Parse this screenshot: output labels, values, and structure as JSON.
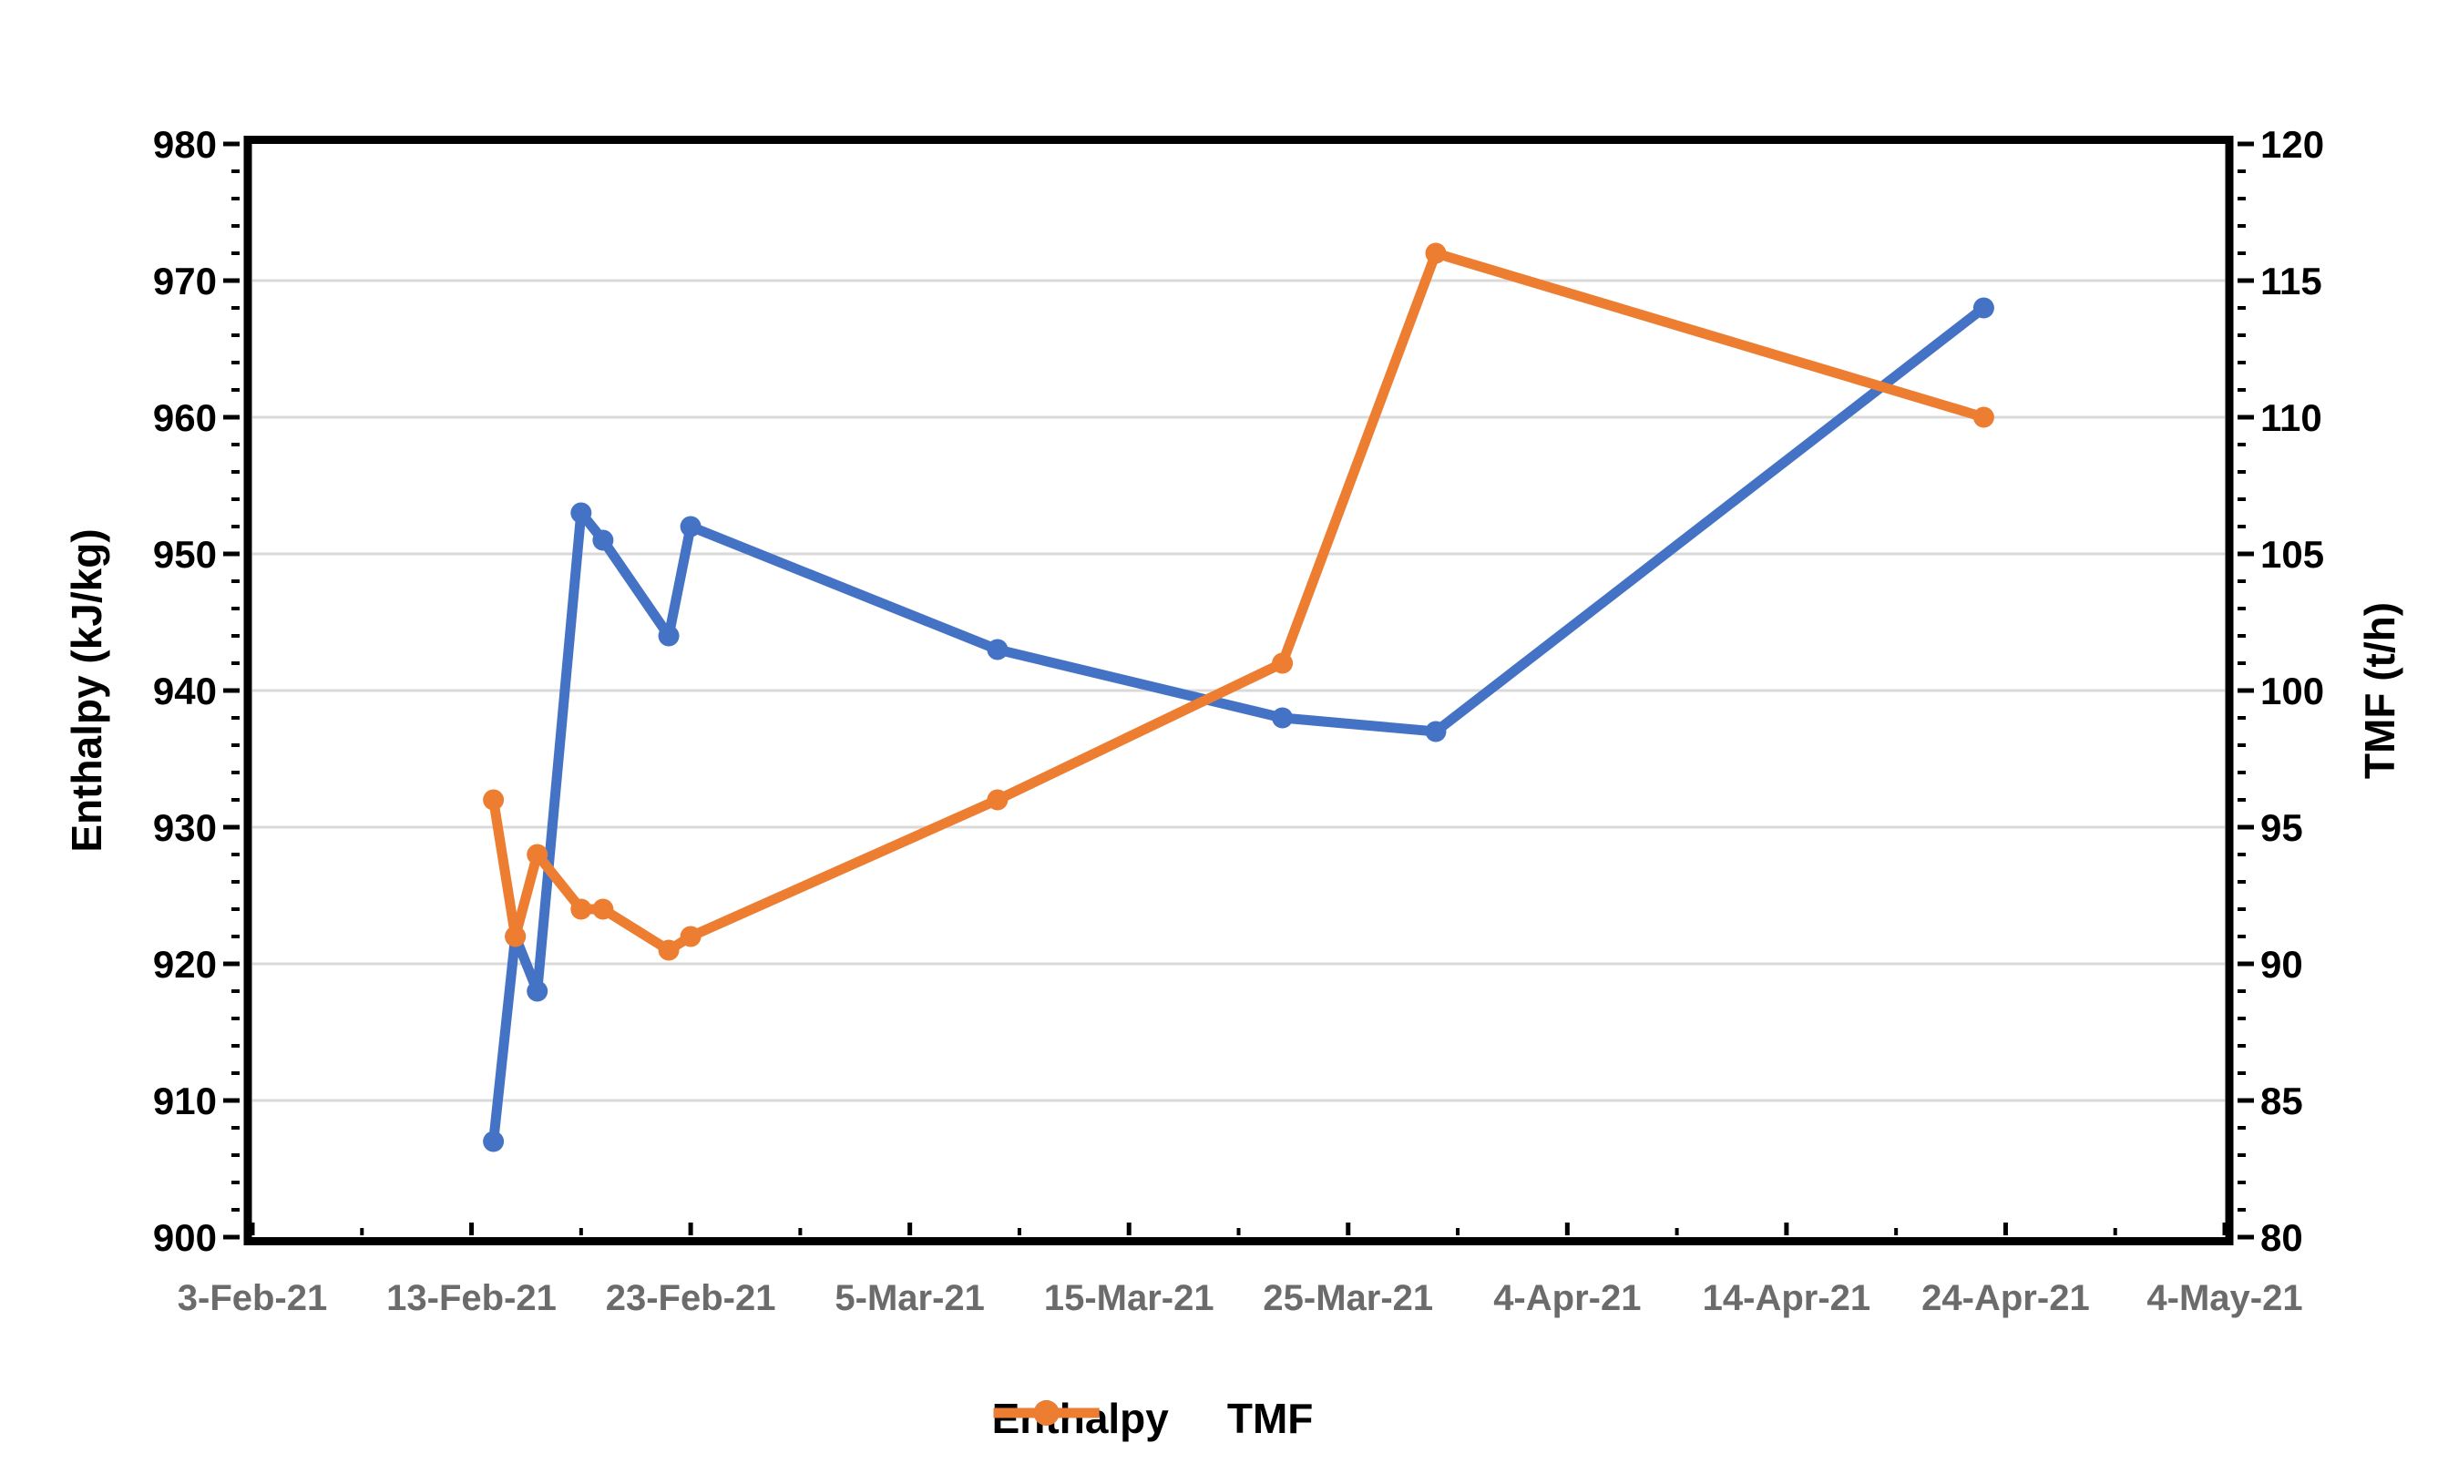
{
  "chart_data": {
    "type": "line",
    "title": "",
    "x_axis": {
      "tick_labels": [
        "3-Feb-21",
        "13-Feb-21",
        "23-Feb-21",
        "5-Mar-21",
        "15-Mar-21",
        "25-Mar-21",
        "4-Apr-21",
        "14-Apr-21",
        "24-Apr-21",
        "4-May-21"
      ],
      "tick_day_offsets": [
        0,
        10,
        20,
        30,
        40,
        50,
        60,
        70,
        80,
        90
      ],
      "minor_day_offsets": [
        5,
        15,
        25,
        35,
        45,
        55,
        65,
        75,
        85
      ],
      "range_days": [
        0,
        90
      ],
      "label_color": "#6b6b6b"
    },
    "left_axis": {
      "title": "Enthalpy (kJ/kg)",
      "min": 900,
      "max": 980,
      "major_step": 10,
      "minor_step": 2
    },
    "right_axis": {
      "title": "TMF (t/h)",
      "min": 80,
      "max": 120,
      "major_step": 5,
      "minor_step": 1
    },
    "grid": {
      "horizontal_major": true,
      "color": "#d9d9d9"
    },
    "series": [
      {
        "name": "Enthalpy",
        "axis": "left",
        "color": "#4472C4",
        "points": [
          {
            "date": "14-Feb-21",
            "day": 11,
            "value": 907
          },
          {
            "date": "15-Feb-21",
            "day": 12,
            "value": 922
          },
          {
            "date": "16-Feb-21",
            "day": 13,
            "value": 918
          },
          {
            "date": "18-Feb-21",
            "day": 15,
            "value": 953
          },
          {
            "date": "19-Feb-21",
            "day": 16,
            "value": 951
          },
          {
            "date": "22-Feb-21",
            "day": 19,
            "value": 944
          },
          {
            "date": "23-Feb-21",
            "day": 20,
            "value": 952
          },
          {
            "date": "9-Mar-21",
            "day": 34,
            "value": 943
          },
          {
            "date": "22-Mar-21",
            "day": 47,
            "value": 938
          },
          {
            "date": "29-Mar-21",
            "day": 54,
            "value": 937
          },
          {
            "date": "23-Apr-21",
            "day": 79,
            "value": 968
          }
        ]
      },
      {
        "name": "TMF",
        "axis": "right",
        "color": "#ED7D31",
        "points": [
          {
            "date": "14-Feb-21",
            "day": 11,
            "value": 96
          },
          {
            "date": "15-Feb-21",
            "day": 12,
            "value": 91
          },
          {
            "date": "16-Feb-21",
            "day": 13,
            "value": 94
          },
          {
            "date": "18-Feb-21",
            "day": 15,
            "value": 92
          },
          {
            "date": "19-Feb-21",
            "day": 16,
            "value": 92
          },
          {
            "date": "22-Feb-21",
            "day": 19,
            "value": 90.5
          },
          {
            "date": "23-Feb-21",
            "day": 20,
            "value": 91
          },
          {
            "date": "9-Mar-21",
            "day": 34,
            "value": 96
          },
          {
            "date": "22-Mar-21",
            "day": 47,
            "value": 101
          },
          {
            "date": "29-Mar-21",
            "day": 54,
            "value": 116
          },
          {
            "date": "23-Apr-21",
            "day": 79,
            "value": 110
          }
        ]
      }
    ],
    "legend": {
      "position": "bottom-center",
      "items": [
        "Enthalpy",
        "TMF"
      ]
    },
    "style": {
      "frame_color": "#000000",
      "y_tick_label_color": "#000000",
      "background": "#ffffff"
    }
  }
}
